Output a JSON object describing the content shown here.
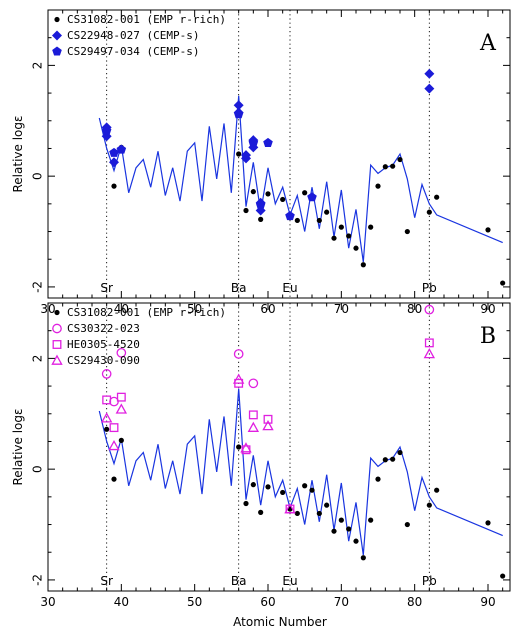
{
  "colors": {
    "model": "#1a35e0",
    "cempS": "#1b1bd8",
    "magenta": "#e020e0",
    "ref": "#000000"
  },
  "xlabel": "Atomic Number",
  "chart_data": [
    {
      "type": "scatter",
      "panel_label": "A",
      "ylabel": "Relative logε",
      "xlim": [
        30,
        93
      ],
      "ylim": [
        -2.2,
        3.0
      ],
      "x_ticks": [
        30,
        40,
        50,
        60,
        70,
        80,
        90
      ],
      "y_ticks": [
        -2,
        0,
        2
      ],
      "element_markers": [
        {
          "label": "Sr",
          "x": 38
        },
        {
          "label": "Ba",
          "x": 56
        },
        {
          "label": "Eu",
          "x": 63
        },
        {
          "label": "Pb",
          "x": 82
        }
      ],
      "model_line": {
        "x": [
          37,
          38,
          39,
          40,
          41,
          42,
          43,
          44,
          45,
          46,
          47,
          48,
          49,
          50,
          51,
          52,
          53,
          54,
          55,
          56,
          57,
          58,
          59,
          60,
          61,
          62,
          63,
          64,
          65,
          66,
          67,
          68,
          69,
          70,
          71,
          72,
          73,
          74,
          75,
          76,
          77,
          78,
          79,
          80,
          81,
          82,
          83,
          92
        ],
        "y": [
          1.05,
          0.5,
          0.1,
          0.55,
          -0.3,
          0.15,
          0.3,
          -0.2,
          0.45,
          -0.35,
          0.15,
          -0.45,
          0.45,
          0.6,
          -0.45,
          0.9,
          -0.05,
          0.95,
          -0.3,
          1.45,
          -0.55,
          0.25,
          -0.65,
          0.15,
          -0.5,
          -0.2,
          -0.7,
          -0.35,
          -1.0,
          -0.2,
          -0.95,
          -0.1,
          -1.1,
          -0.25,
          -1.3,
          -0.6,
          -1.55,
          0.2,
          0.05,
          0.15,
          0.2,
          0.4,
          -0.05,
          -0.75,
          -0.15,
          -0.5,
          -0.7,
          -1.2
        ]
      },
      "series": [
        {
          "name": "CS31082-001 (EMP r-rich)",
          "marker": "dot",
          "x": [
            38,
            39,
            40,
            56,
            57,
            58,
            59,
            60,
            62,
            63,
            64,
            65,
            66,
            67,
            68,
            69,
            70,
            71,
            72,
            73,
            74,
            75,
            76,
            77,
            78,
            79,
            82,
            83,
            90,
            92
          ],
          "y": [
            0.72,
            -0.18,
            0.52,
            0.4,
            -0.62,
            -0.28,
            -0.78,
            -0.32,
            -0.42,
            -0.72,
            -0.8,
            -0.3,
            -0.38,
            -0.8,
            -0.65,
            -1.12,
            -0.92,
            -1.08,
            -1.3,
            -1.6,
            -0.92,
            -0.18,
            0.17,
            0.18,
            0.3,
            -1.0,
            -0.65,
            -0.38,
            -0.97,
            -1.93
          ]
        },
        {
          "name": "CS22948-027 (CEMP-s)",
          "marker": "diamond",
          "x": [
            38,
            38,
            39,
            56,
            56,
            57,
            57,
            58,
            58,
            59,
            59,
            82,
            82
          ],
          "y": [
            0.88,
            0.72,
            0.25,
            1.28,
            1.15,
            0.32,
            0.38,
            0.52,
            0.65,
            -0.48,
            -0.62,
            1.85,
            1.58
          ],
          "color": "#1b1bd8"
        },
        {
          "name": "CS29497-034 (CEMP-s)",
          "marker": "pentagon",
          "x": [
            38,
            39,
            40,
            56,
            58,
            59,
            60,
            63,
            66
          ],
          "y": [
            0.82,
            0.42,
            0.48,
            1.12,
            0.6,
            -0.52,
            0.6,
            -0.72,
            -0.38
          ],
          "color": "#1b1bd8"
        }
      ]
    },
    {
      "type": "scatter",
      "panel_label": "B",
      "ylabel": "Relative logε",
      "xlim": [
        30,
        93
      ],
      "ylim": [
        -2.2,
        3.0
      ],
      "x_ticks": [
        30,
        40,
        50,
        60,
        70,
        80,
        90
      ],
      "y_ticks": [
        -2,
        0,
        2
      ],
      "element_markers": [
        {
          "label": "Sr",
          "x": 38
        },
        {
          "label": "Ba",
          "x": 56
        },
        {
          "label": "Eu",
          "x": 63
        },
        {
          "label": "Pb",
          "x": 82
        }
      ],
      "model_line": {
        "x": [
          37,
          38,
          39,
          40,
          41,
          42,
          43,
          44,
          45,
          46,
          47,
          48,
          49,
          50,
          51,
          52,
          53,
          54,
          55,
          56,
          57,
          58,
          59,
          60,
          61,
          62,
          63,
          64,
          65,
          66,
          67,
          68,
          69,
          70,
          71,
          72,
          73,
          74,
          75,
          76,
          77,
          78,
          79,
          80,
          81,
          82,
          83,
          92
        ],
        "y": [
          1.05,
          0.5,
          0.1,
          0.55,
          -0.3,
          0.15,
          0.3,
          -0.2,
          0.45,
          -0.35,
          0.15,
          -0.45,
          0.45,
          0.6,
          -0.45,
          0.9,
          -0.05,
          0.95,
          -0.3,
          1.45,
          -0.55,
          0.25,
          -0.65,
          0.15,
          -0.5,
          -0.2,
          -0.7,
          -0.35,
          -1.0,
          -0.2,
          -0.95,
          -0.1,
          -1.1,
          -0.25,
          -1.3,
          -0.6,
          -1.55,
          0.2,
          0.05,
          0.15,
          0.2,
          0.4,
          -0.05,
          -0.75,
          -0.15,
          -0.5,
          -0.7,
          -1.2
        ]
      },
      "series": [
        {
          "name": "CS31082-001 (EMP r-rich)",
          "marker": "dot",
          "x": [
            38,
            39,
            40,
            56,
            57,
            58,
            59,
            60,
            62,
            63,
            64,
            65,
            66,
            67,
            68,
            69,
            70,
            71,
            72,
            73,
            74,
            75,
            76,
            77,
            78,
            79,
            82,
            83,
            90,
            92
          ],
          "y": [
            0.72,
            -0.18,
            0.52,
            0.4,
            -0.62,
            -0.28,
            -0.78,
            -0.32,
            -0.42,
            -0.72,
            -0.8,
            -0.3,
            -0.38,
            -0.8,
            -0.65,
            -1.12,
            -0.92,
            -1.08,
            -1.3,
            -1.6,
            -0.92,
            -0.18,
            0.17,
            0.18,
            0.3,
            -1.0,
            -0.65,
            -0.38,
            -0.97,
            -1.93
          ]
        },
        {
          "name": "CS30322-023",
          "marker": "circle",
          "x": [
            38,
            39,
            40,
            56,
            58,
            82
          ],
          "y": [
            1.72,
            1.22,
            2.1,
            2.08,
            1.55,
            2.88
          ],
          "color": "#e020e0"
        },
        {
          "name": "HE0305-4520",
          "marker": "square",
          "x": [
            38,
            39,
            40,
            56,
            57,
            58,
            60,
            63,
            82
          ],
          "y": [
            1.25,
            0.75,
            1.3,
            1.55,
            0.35,
            0.98,
            0.9,
            -0.72,
            2.28
          ],
          "color": "#e020e0"
        },
        {
          "name": "CS29430-090",
          "marker": "triangle",
          "x": [
            38,
            39,
            40,
            56,
            57,
            58,
            60,
            63,
            82
          ],
          "y": [
            0.92,
            0.42,
            1.08,
            1.62,
            0.38,
            0.75,
            0.78,
            -0.72,
            2.08
          ],
          "color": "#e020e0"
        }
      ]
    }
  ]
}
